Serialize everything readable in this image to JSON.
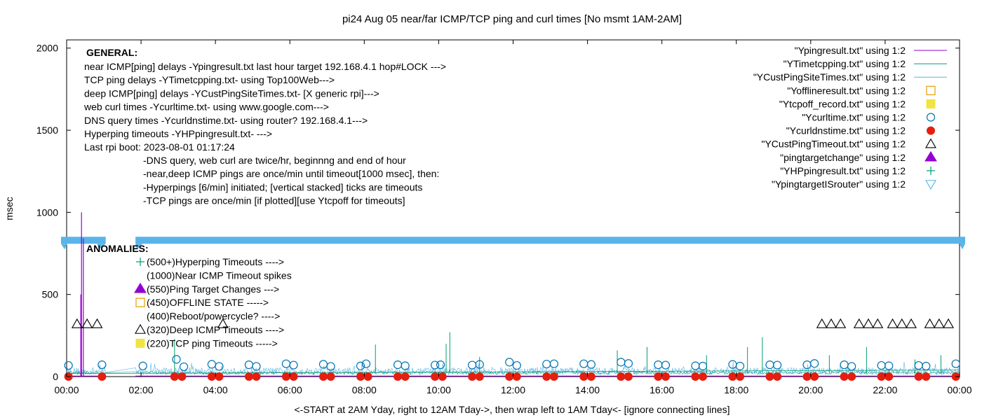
{
  "chart_data": {
    "type": "line",
    "title": "pi24 Aug 05  near/far ICMP/TCP ping and curl times [No msmt 1AM-2AM]",
    "xlabel": "<-START at 2AM Yday, right to 12AM Tday->, then wrap left to 1AM Tday<- [ignore connecting lines]",
    "ylabel": "msec",
    "xlim": [
      0,
      24
    ],
    "ylim": [
      0,
      2050
    ],
    "x_ticks": [
      "00:00",
      "02:00",
      "04:00",
      "06:00",
      "08:00",
      "10:00",
      "12:00",
      "14:00",
      "16:00",
      "18:00",
      "20:00",
      "22:00",
      "00:00"
    ],
    "y_ticks": [
      {
        "value": 0,
        "label": "0"
      },
      {
        "value": 500,
        "label": "500"
      },
      {
        "value": 1000,
        "label": "1000"
      },
      {
        "value": 1500,
        "label": "1500"
      },
      {
        "value": 2000,
        "label": "2000"
      }
    ],
    "grid": false,
    "legend_position": "top-right",
    "colors": {
      "ping": "#9400d3",
      "tcp": "#009e73",
      "cust": "#56b4e9",
      "offline": "#e69f00",
      "tcpoff": "#f0e442",
      "curl": "#0072b2",
      "dns": "#e51e10",
      "cust_timeout": "#000000",
      "target_change": "#9400d3",
      "hpping": "#009e73",
      "target_router": "#56b4e9",
      "band": "#5ab4e8"
    },
    "legend": [
      {
        "label": "\"Ypingresult.txt\" using 1:2",
        "kind": "line",
        "color": "#9400d3"
      },
      {
        "label": "\"YTimetcpping.txt\" using 1:2",
        "kind": "line",
        "color": "#009e73"
      },
      {
        "label": "\"YCustPingSiteTimes.txt\" using 1:2",
        "kind": "line",
        "color": "#56b4e9"
      },
      {
        "label": "\"Yofflineresult.txt\" using 1:2",
        "kind": "open-square",
        "color": "#e69f00"
      },
      {
        "label": "\"Ytcpoff_record.txt\" using 1:2",
        "kind": "filled-square",
        "color": "#f0e442"
      },
      {
        "label": "\"Ycurltime.txt\" using 1:2",
        "kind": "open-circle",
        "color": "#0072b2"
      },
      {
        "label": "\"Ycurldnstime.txt\" using 1:2",
        "kind": "filled-circle",
        "color": "#e51e10"
      },
      {
        "label": "\"YCustPingTimeout.txt\" using 1:2",
        "kind": "open-triangle",
        "color": "#000000"
      },
      {
        "label": "\"pingtargetchange\" using 1:2",
        "kind": "filled-triangle",
        "color": "#9400d3"
      },
      {
        "label": "\"YHPpingresult.txt\" using 1:2",
        "kind": "plus",
        "color": "#009e73"
      },
      {
        "label": "\"YpingtargetISrouter\" using 1:2",
        "kind": "open-down-triangle",
        "color": "#56b4e9"
      }
    ],
    "general_heading": "GENERAL:",
    "general_lines": [
      "near ICMP[ping] delays -Ypingresult.txt last hour target 192.168.4.1 hop#LOCK --->",
      "TCP ping delays -YTimetcpping.txt- using Top100Web--->",
      "deep ICMP[ping] delays -YCustPingSiteTimes.txt- [X generic rpi]--->",
      "web curl times -Ycurltime.txt- using www.google.com--->",
      "DNS query times -Ycurldnstime.txt- using router? 192.168.4.1--->",
      "Hyperping timeouts -YHPpingresult.txt- --->",
      "Last rpi boot: 2023-08-01 01:17:24"
    ],
    "notes": [
      "-DNS query, web curl are twice/hr, beginnng and end of hour",
      "-near,deep ICMP pings are once/min until timeout[1000 msec], then:",
      "  -Hyperpings [6/min] initiated; [vertical stacked] ticks are timeouts",
      "-TCP pings are once/min [if plotted][use Ytcpoff for timeouts]"
    ],
    "anomalies_heading": "ANOMALIES:",
    "anomalies": [
      {
        "text": "(500+)Hyperping Timeouts ---->",
        "marker": "plus"
      },
      {
        "text": "(1000)Near ICMP Timeout spikes",
        "marker": "none"
      },
      {
        "text": "(550)Ping Target Changes --->",
        "marker": "filled-triangle"
      },
      {
        "text": "(450)OFFLINE STATE ----->",
        "marker": "open-square"
      },
      {
        "text": "(400)Reboot/powercycle? ---->",
        "marker": "none"
      },
      {
        "text": "(320)Deep ICMP Timeouts ---->",
        "marker": "open-triangle"
      },
      {
        "text": "(220)TCP ping Timeouts ----->",
        "marker": "filled-square"
      }
    ],
    "band": {
      "y": 830,
      "gap_x": [
        1.05,
        1.85
      ]
    },
    "near_ping_spikes": [
      {
        "x": 0.4,
        "y": 1000
      },
      {
        "x": 0.38,
        "y": 500
      },
      {
        "x": 0.45,
        "y": 840
      }
    ],
    "tcp_spikes": [
      {
        "x": 2.9,
        "y": 230
      },
      {
        "x": 8.3,
        "y": 195
      },
      {
        "x": 10.2,
        "y": 200
      },
      {
        "x": 10.3,
        "y": 270
      },
      {
        "x": 11.1,
        "y": 120
      },
      {
        "x": 14.8,
        "y": 160
      },
      {
        "x": 15.6,
        "y": 180
      },
      {
        "x": 17.2,
        "y": 130
      },
      {
        "x": 18.3,
        "y": 180
      },
      {
        "x": 18.7,
        "y": 240
      },
      {
        "x": 20.5,
        "y": 130
      },
      {
        "x": 21.5,
        "y": 180
      },
      {
        "x": 22.8,
        "y": 105
      },
      {
        "x": 23.5,
        "y": 130
      }
    ],
    "curl_points": [
      {
        "x": 0.05,
        "y": 68
      },
      {
        "x": 0.95,
        "y": 72
      },
      {
        "x": 2.05,
        "y": 65
      },
      {
        "x": 2.95,
        "y": 105
      },
      {
        "x": 3.15,
        "y": 60
      },
      {
        "x": 3.9,
        "y": 75
      },
      {
        "x": 4.1,
        "y": 62
      },
      {
        "x": 4.9,
        "y": 72
      },
      {
        "x": 5.1,
        "y": 62
      },
      {
        "x": 5.9,
        "y": 78
      },
      {
        "x": 6.1,
        "y": 70
      },
      {
        "x": 6.9,
        "y": 75
      },
      {
        "x": 7.1,
        "y": 62
      },
      {
        "x": 7.9,
        "y": 65
      },
      {
        "x": 8.05,
        "y": 78
      },
      {
        "x": 8.9,
        "y": 72
      },
      {
        "x": 9.1,
        "y": 66
      },
      {
        "x": 9.9,
        "y": 70
      },
      {
        "x": 10.05,
        "y": 72
      },
      {
        "x": 10.9,
        "y": 70
      },
      {
        "x": 11.1,
        "y": 74
      },
      {
        "x": 11.9,
        "y": 88
      },
      {
        "x": 12.1,
        "y": 68
      },
      {
        "x": 12.9,
        "y": 76
      },
      {
        "x": 13.1,
        "y": 78
      },
      {
        "x": 13.9,
        "y": 78
      },
      {
        "x": 14.1,
        "y": 74
      },
      {
        "x": 14.9,
        "y": 88
      },
      {
        "x": 15.1,
        "y": 80
      },
      {
        "x": 15.9,
        "y": 72
      },
      {
        "x": 16.1,
        "y": 70
      },
      {
        "x": 16.9,
        "y": 66
      },
      {
        "x": 17.1,
        "y": 64
      },
      {
        "x": 17.9,
        "y": 74
      },
      {
        "x": 18.1,
        "y": 64
      },
      {
        "x": 18.9,
        "y": 72
      },
      {
        "x": 19.1,
        "y": 70
      },
      {
        "x": 19.9,
        "y": 72
      },
      {
        "x": 20.1,
        "y": 80
      },
      {
        "x": 20.9,
        "y": 72
      },
      {
        "x": 21.1,
        "y": 62
      },
      {
        "x": 21.9,
        "y": 68
      },
      {
        "x": 22.1,
        "y": 66
      },
      {
        "x": 22.9,
        "y": 68
      },
      {
        "x": 23.1,
        "y": 64
      },
      {
        "x": 23.9,
        "y": 78
      }
    ],
    "dns_points": [
      {
        "x": 0.05,
        "y": 0
      },
      {
        "x": 0.95,
        "y": 0
      },
      {
        "x": 2.9,
        "y": 0
      },
      {
        "x": 3.1,
        "y": 0
      },
      {
        "x": 3.9,
        "y": 0
      },
      {
        "x": 4.1,
        "y": 0
      },
      {
        "x": 4.9,
        "y": 0
      },
      {
        "x": 5.1,
        "y": 0
      },
      {
        "x": 5.9,
        "y": 0
      },
      {
        "x": 6.1,
        "y": 0
      },
      {
        "x": 6.9,
        "y": 0
      },
      {
        "x": 7.1,
        "y": 0
      },
      {
        "x": 7.9,
        "y": 0
      },
      {
        "x": 8.1,
        "y": 0
      },
      {
        "x": 8.9,
        "y": 0
      },
      {
        "x": 9.1,
        "y": 0
      },
      {
        "x": 9.9,
        "y": 0
      },
      {
        "x": 10.1,
        "y": 0
      },
      {
        "x": 10.9,
        "y": 0
      },
      {
        "x": 11.1,
        "y": 0
      },
      {
        "x": 11.9,
        "y": 0
      },
      {
        "x": 12.1,
        "y": 0
      },
      {
        "x": 12.9,
        "y": 0
      },
      {
        "x": 13.1,
        "y": 0
      },
      {
        "x": 13.9,
        "y": 0
      },
      {
        "x": 14.1,
        "y": 0
      },
      {
        "x": 14.9,
        "y": 0
      },
      {
        "x": 15.1,
        "y": 0
      },
      {
        "x": 15.9,
        "y": 0
      },
      {
        "x": 16.1,
        "y": 0
      },
      {
        "x": 16.9,
        "y": 0
      },
      {
        "x": 17.1,
        "y": 0
      },
      {
        "x": 17.9,
        "y": 0
      },
      {
        "x": 18.1,
        "y": 0
      },
      {
        "x": 18.9,
        "y": 0
      },
      {
        "x": 19.1,
        "y": 0
      },
      {
        "x": 19.9,
        "y": 0
      },
      {
        "x": 20.1,
        "y": 0
      },
      {
        "x": 20.9,
        "y": 0
      },
      {
        "x": 21.1,
        "y": 0
      },
      {
        "x": 21.9,
        "y": 0
      },
      {
        "x": 22.1,
        "y": 0
      },
      {
        "x": 22.9,
        "y": 0
      },
      {
        "x": 23.1,
        "y": 0
      },
      {
        "x": 23.9,
        "y": 0
      }
    ],
    "cust_timeouts": [
      {
        "x": 0.28,
        "y": 320
      },
      {
        "x": 0.55,
        "y": 320
      },
      {
        "x": 0.82,
        "y": 320
      },
      {
        "x": 4.2,
        "y": 320
      },
      {
        "x": 20.3,
        "y": 320
      },
      {
        "x": 20.55,
        "y": 320
      },
      {
        "x": 20.8,
        "y": 320
      },
      {
        "x": 21.3,
        "y": 320
      },
      {
        "x": 21.55,
        "y": 320
      },
      {
        "x": 21.8,
        "y": 320
      },
      {
        "x": 22.2,
        "y": 320
      },
      {
        "x": 22.45,
        "y": 320
      },
      {
        "x": 22.7,
        "y": 320
      },
      {
        "x": 23.2,
        "y": 320
      },
      {
        "x": 23.45,
        "y": 320
      },
      {
        "x": 23.7,
        "y": 320
      }
    ]
  }
}
